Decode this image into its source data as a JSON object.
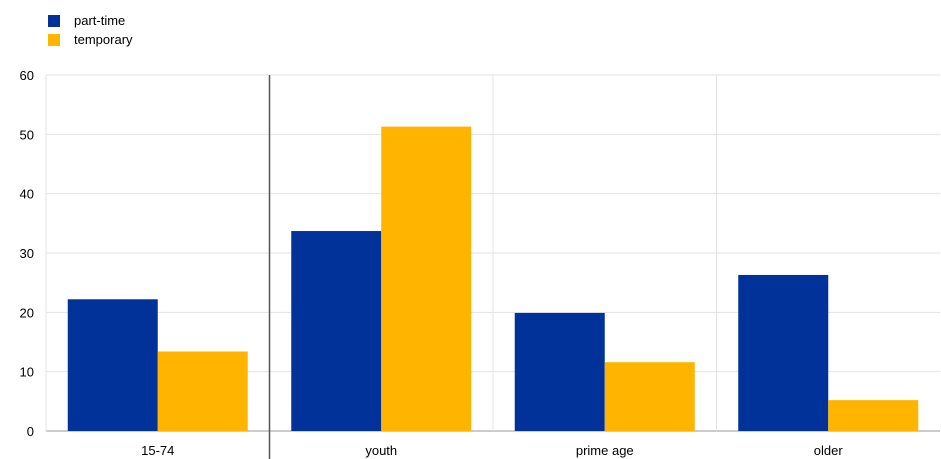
{
  "chart_data": {
    "type": "bar",
    "categories": [
      "15-74",
      "youth",
      "prime age",
      "older"
    ],
    "series": [
      {
        "name": "part-time",
        "values": [
          22.2,
          33.7,
          19.9,
          26.3
        ],
        "color": "#003299"
      },
      {
        "name": "temporary",
        "values": [
          13.4,
          51.3,
          11.6,
          5.2
        ],
        "color": "#FFB400"
      }
    ],
    "ylim": [
      0,
      60
    ],
    "yticks": [
      0,
      10,
      20,
      30,
      40,
      50,
      60
    ],
    "grid": true,
    "legend_position": "top-left",
    "separator_after_category": "15-74"
  }
}
